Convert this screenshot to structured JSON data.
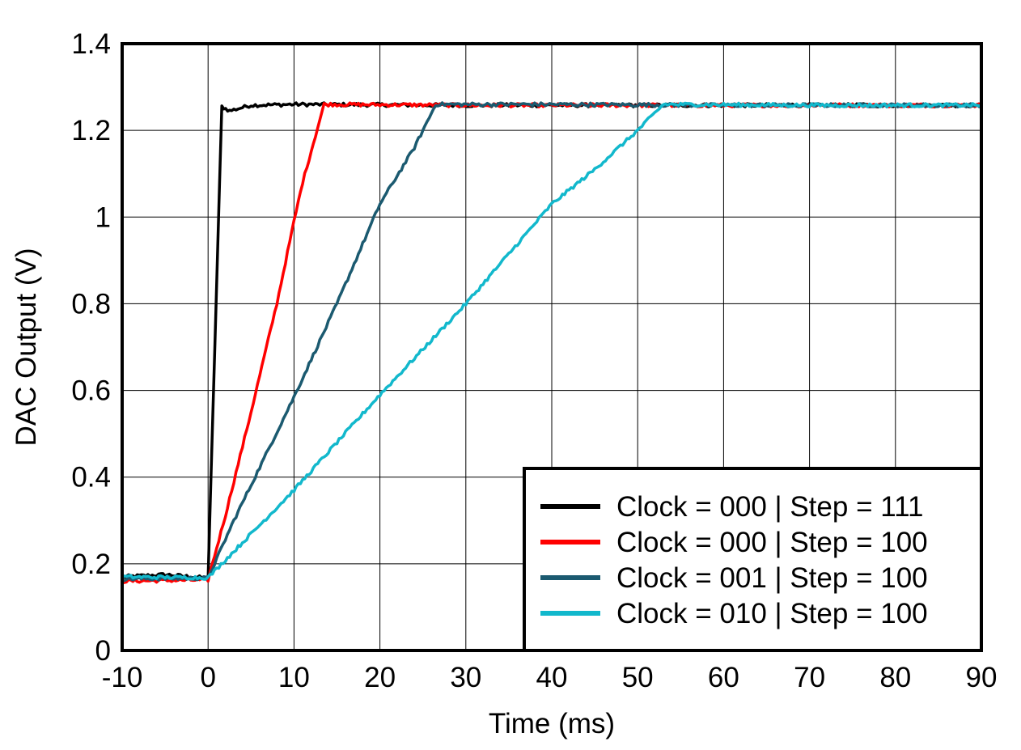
{
  "chart_data": {
    "type": "line",
    "title": "",
    "xlabel": "Time (ms)",
    "ylabel": "DAC Output (V)",
    "xlim": [
      -10,
      90
    ],
    "ylim": [
      0,
      1.4
    ],
    "x_ticks": [
      -10,
      0,
      10,
      20,
      30,
      40,
      50,
      60,
      70,
      80,
      90
    ],
    "y_ticks": [
      0,
      0.2,
      0.4,
      0.6,
      0.8,
      1,
      1.2,
      1.4
    ],
    "grid": true,
    "legend_position": "bottom-right",
    "series": [
      {
        "name": "Clock = 000 | Step = 111",
        "color": "#000000",
        "points": [
          [
            -10,
            0.17
          ],
          [
            -5,
            0.175
          ],
          [
            0,
            0.167
          ],
          [
            1.6,
            1.255
          ],
          [
            2.5,
            1.245
          ],
          [
            5,
            1.258
          ],
          [
            10,
            1.26
          ],
          [
            30,
            1.258
          ],
          [
            60,
            1.258
          ],
          [
            90,
            1.258
          ]
        ]
      },
      {
        "name": "Clock = 000 | Step = 100",
        "color": "#ff0000",
        "points": [
          [
            -10,
            0.16
          ],
          [
            0,
            0.163
          ],
          [
            2,
            0.31
          ],
          [
            5,
            0.55
          ],
          [
            8,
            0.8
          ],
          [
            10,
            0.99
          ],
          [
            11,
            1.08
          ],
          [
            13.5,
            1.26
          ],
          [
            30,
            1.258
          ],
          [
            60,
            1.258
          ],
          [
            90,
            1.258
          ]
        ]
      },
      {
        "name": "Clock = 001 | Step = 100",
        "color": "#1b5a70",
        "points": [
          [
            -10,
            0.165
          ],
          [
            0,
            0.167
          ],
          [
            3,
            0.3
          ],
          [
            10,
            0.585
          ],
          [
            15,
            0.8
          ],
          [
            20,
            1.03
          ],
          [
            24,
            1.16
          ],
          [
            26.5,
            1.26
          ],
          [
            40,
            1.26
          ],
          [
            60,
            1.258
          ],
          [
            90,
            1.258
          ]
        ]
      },
      {
        "name": "Clock = 010 | Step = 100",
        "color": "#12b8cc",
        "points": [
          [
            -10,
            0.17
          ],
          [
            0,
            0.168
          ],
          [
            10,
            0.37
          ],
          [
            20,
            0.59
          ],
          [
            30,
            0.8
          ],
          [
            40,
            1.03
          ],
          [
            45,
            1.11
          ],
          [
            50,
            1.2
          ],
          [
            53,
            1.26
          ],
          [
            70,
            1.258
          ],
          [
            90,
            1.258
          ]
        ]
      }
    ]
  }
}
